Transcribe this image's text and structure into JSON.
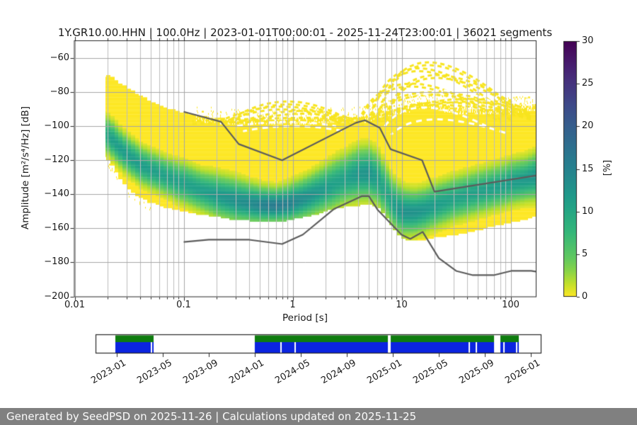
{
  "chart_data": {
    "type": "heatmap",
    "title": "1Y.GR10.00.HHN | 100.0Hz | 2023-01-01T00:00:01 - 2025-11-24T23:00:01 | 36021 segments",
    "xlabel": "Period [s]",
    "ylabel": "Amplitude [m²/s⁴/Hz] [dB]",
    "xscale": "log",
    "xlim": [
      0.01,
      170
    ],
    "ylim": [
      -200,
      -50
    ],
    "grid": true,
    "xticks": [
      0.01,
      0.1,
      1,
      10,
      100
    ],
    "xtick_labels": [
      "0.01",
      "0.1",
      "1",
      "10",
      "100"
    ],
    "yticks": [
      -60,
      -80,
      -100,
      -120,
      -140,
      -160,
      -180,
      -200
    ],
    "colorbar": {
      "label": "[%]",
      "min": 0,
      "max": 30,
      "ticks": [
        0,
        5,
        10,
        15,
        20,
        25,
        30
      ],
      "colormap": "viridis_r"
    },
    "histogram_percent_peak": 16,
    "columns_format": [
      "period_s",
      "top_db",
      "bottom_db",
      "mode_db",
      "spread_db",
      "intensity"
    ],
    "histogram_columns": [
      [
        0.019,
        -72,
        -118,
        -105,
        6,
        0.55
      ],
      [
        0.021,
        -70,
        -121,
        -107,
        6,
        0.7
      ],
      [
        0.025,
        -75,
        -129,
        -112,
        6,
        0.72
      ],
      [
        0.03,
        -78,
        -136,
        -117,
        6,
        0.72
      ],
      [
        0.04,
        -83,
        -142,
        -123,
        6,
        0.72
      ],
      [
        0.05,
        -86,
        -145,
        -126,
        6,
        0.7
      ],
      [
        0.07,
        -90,
        -148,
        -130,
        6,
        0.68
      ],
      [
        0.1,
        -93,
        -150,
        -134,
        6.5,
        0.68
      ],
      [
        0.15,
        -95,
        -152,
        -138.5,
        6.5,
        0.7
      ],
      [
        0.2,
        -96,
        -153,
        -141,
        7,
        0.74
      ],
      [
        0.3,
        -97,
        -155,
        -144,
        7,
        0.82
      ],
      [
        0.4,
        -97,
        -155.5,
        -145.5,
        6.5,
        0.86
      ],
      [
        0.5,
        -97,
        -156,
        -146.5,
        6,
        0.92
      ],
      [
        0.7,
        -97,
        -156,
        -147,
        5.5,
        1.0
      ],
      [
        0.9,
        -96.5,
        -155.5,
        -146,
        6,
        0.95
      ],
      [
        1.2,
        -96.5,
        -154,
        -143.5,
        6.5,
        0.85
      ],
      [
        1.6,
        -96,
        -152,
        -140,
        7,
        0.78
      ],
      [
        2.0,
        -96,
        -150,
        -137,
        7.5,
        0.72
      ],
      [
        2.5,
        -96,
        -148.5,
        -134,
        8,
        0.68
      ],
      [
        3.0,
        -96,
        -147.5,
        -131.5,
        8,
        0.68
      ],
      [
        4.0,
        -95.5,
        -146.5,
        -128.5,
        8.5,
        0.76
      ],
      [
        5.0,
        -95,
        -145.5,
        -128,
        8.5,
        0.8
      ],
      [
        6.0,
        -93,
        -147,
        -131,
        8.5,
        0.7
      ],
      [
        7.0,
        -92,
        -152,
        -138,
        8.5,
        0.62
      ],
      [
        8.0,
        -91,
        -158,
        -144,
        8,
        0.66
      ],
      [
        10,
        -90,
        -166,
        -150.5,
        7.5,
        0.8
      ],
      [
        13,
        -88,
        -167.5,
        -151,
        7,
        0.8
      ],
      [
        16,
        -87,
        -167,
        -149.5,
        7,
        0.76
      ],
      [
        20,
        -88,
        -165.5,
        -147,
        7,
        0.72
      ],
      [
        30,
        -90,
        -164,
        -143,
        7,
        0.66
      ],
      [
        50,
        -91,
        -161,
        -139,
        7,
        0.68
      ],
      [
        80,
        -91,
        -158,
        -135.5,
        7,
        0.7
      ],
      [
        100,
        -90,
        -156.5,
        -133.5,
        7,
        0.72
      ],
      [
        140,
        -89,
        -154.5,
        -131.5,
        7,
        0.75
      ],
      [
        170,
        -88,
        -153,
        -130,
        7.5,
        0.78
      ]
    ],
    "noise_models": {
      "color": "#5c5c5c",
      "nhnm": [
        [
          0.1,
          -91.5
        ],
        [
          0.22,
          -97.4
        ],
        [
          0.32,
          -110.5
        ],
        [
          0.8,
          -120.0
        ],
        [
          3.8,
          -98.0
        ],
        [
          4.6,
          -96.5
        ],
        [
          6.3,
          -101.0
        ],
        [
          7.9,
          -113.5
        ],
        [
          15.4,
          -120.0
        ],
        [
          20.0,
          -138.5
        ],
        [
          170.0,
          -129.0
        ]
      ],
      "nlnm": [
        [
          0.1,
          -168.0
        ],
        [
          0.17,
          -166.7
        ],
        [
          0.4,
          -166.7
        ],
        [
          0.8,
          -169.2
        ],
        [
          1.24,
          -163.7
        ],
        [
          2.4,
          -148.6
        ],
        [
          4.3,
          -141.1
        ],
        [
          5.0,
          -141.1
        ],
        [
          6.0,
          -149.0
        ],
        [
          10.0,
          -163.8
        ],
        [
          12.0,
          -166.2
        ],
        [
          15.6,
          -162.1
        ],
        [
          21.9,
          -177.5
        ],
        [
          31.6,
          -185.0
        ],
        [
          45.0,
          -187.5
        ],
        [
          70.0,
          -187.5
        ],
        [
          101.0,
          -185.0
        ],
        [
          154.0,
          -185.0
        ],
        [
          170.0,
          -185.4
        ]
      ]
    },
    "high_noise_arcs": [
      [
        [
          6,
          -95
        ],
        [
          17,
          -62.5
        ],
        [
          120,
          -92
        ]
      ],
      [
        [
          5,
          -97
        ],
        [
          14,
          -66
        ],
        [
          100,
          -95
        ]
      ],
      [
        [
          7,
          -96
        ],
        [
          20,
          -70
        ],
        [
          150,
          -93
        ]
      ],
      [
        [
          4,
          -97
        ],
        [
          12,
          -75
        ],
        [
          80,
          -96
        ]
      ],
      [
        [
          5,
          -96.5
        ],
        [
          18,
          -80
        ],
        [
          160,
          -94
        ]
      ],
      [
        [
          5.5,
          -97
        ],
        [
          22,
          -86
        ],
        [
          165,
          -95
        ]
      ],
      [
        [
          10,
          -90
        ],
        [
          40,
          -84
        ],
        [
          140,
          -90
        ]
      ],
      [
        [
          0.25,
          -97.5
        ],
        [
          0.9,
          -85.5
        ],
        [
          3.5,
          -97.5
        ]
      ],
      [
        [
          0.2,
          -98
        ],
        [
          0.8,
          -88.5
        ],
        [
          3,
          -98
        ]
      ],
      [
        [
          0.3,
          -98.5
        ],
        [
          1.2,
          -91
        ],
        [
          4.5,
          -98
        ]
      ],
      [
        [
          0.12,
          -97
        ],
        [
          1.5,
          -95
        ],
        [
          9,
          -96
        ]
      ]
    ],
    "white_gap_arcs": [
      [
        [
          7,
          -100
        ],
        [
          16,
          -89
        ],
        [
          60,
          -100
        ]
      ],
      [
        [
          8,
          -105
        ],
        [
          20,
          -96
        ],
        [
          90,
          -104
        ]
      ],
      [
        [
          12,
          -86
        ],
        [
          25,
          -79
        ],
        [
          70,
          -86
        ]
      ],
      [
        [
          0.3,
          -100
        ],
        [
          0.9,
          -97.5
        ],
        [
          2.5,
          -100
        ]
      ],
      [
        [
          0.35,
          -103
        ],
        [
          1.0,
          -100
        ],
        [
          3,
          -103
        ]
      ]
    ],
    "histogram_base_color": "#fde725"
  },
  "availability": {
    "tick_labels": [
      "2023-01",
      "2023-05",
      "2023-09",
      "2024-01",
      "2024-05",
      "2024-09",
      "2025-01",
      "2025-05",
      "2025-09",
      "2026-01"
    ],
    "green_color": "#0e7c0e",
    "blue_color": "#0b24e0",
    "green_segments": [
      [
        0.0444,
        0.1302
      ],
      [
        0.3571,
        0.6556
      ],
      [
        0.6619,
        0.8937
      ],
      [
        0.9079,
        0.9492
      ]
    ],
    "blue_segments": [
      [
        0.0444,
        0.1238
      ],
      [
        0.127,
        0.1302
      ],
      [
        0.3571,
        0.4143
      ],
      [
        0.4175,
        0.446
      ],
      [
        0.4492,
        0.6556
      ],
      [
        0.6619,
        0.8365
      ],
      [
        0.8397,
        0.8524
      ],
      [
        0.8556,
        0.8937
      ],
      [
        0.9079,
        0.9143
      ],
      [
        0.9175,
        0.9428
      ],
      [
        0.946,
        0.9492
      ]
    ]
  },
  "footer": {
    "text": "Generated by SeedPSD on 2025-11-26 | Calculations updated on 2025-11-25",
    "bg_color": "#808080",
    "text_color": "#fafafa"
  }
}
